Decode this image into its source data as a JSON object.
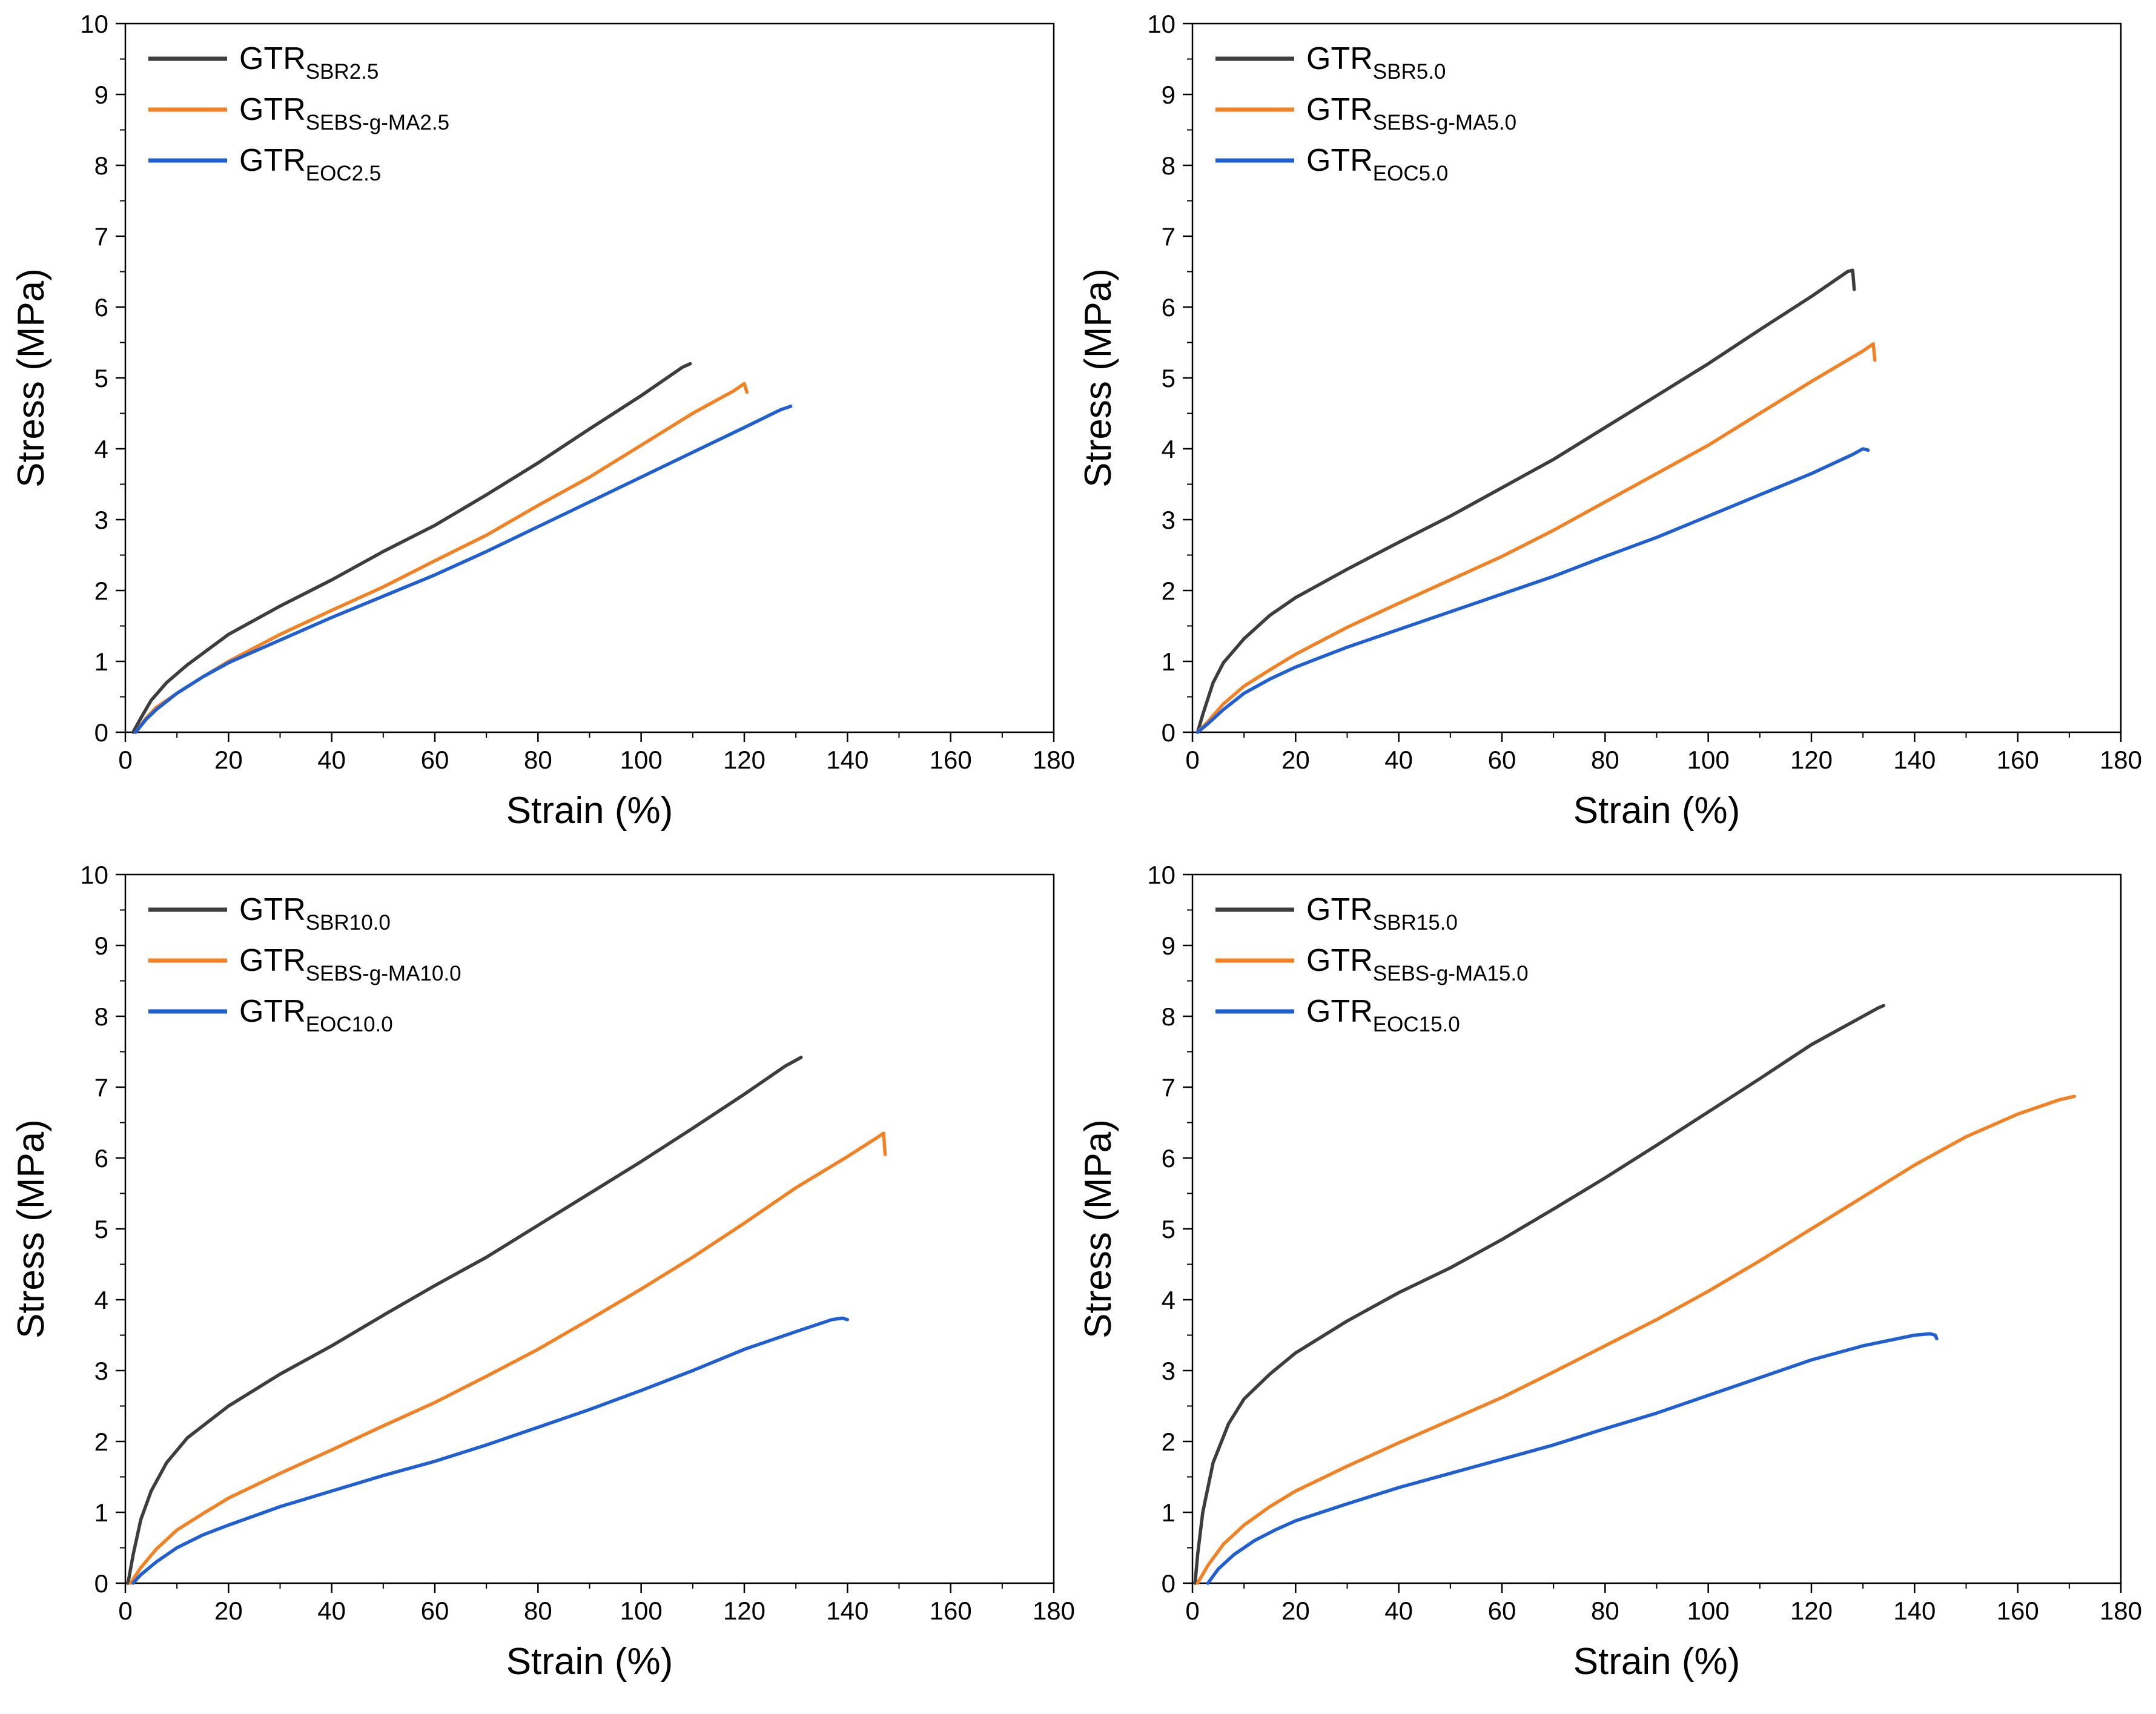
{
  "chart_data": [
    {
      "type": "line",
      "panel": "top-left",
      "xlabel": "Strain (%)",
      "ylabel": "Stress (MPa)",
      "xlim": [
        0,
        180
      ],
      "ylim": [
        0,
        10
      ],
      "xticks": [
        "0",
        "20",
        "40",
        "60",
        "80",
        "100",
        "120",
        "140",
        "160",
        "180"
      ],
      "yticks": [
        "0",
        "1",
        "2",
        "3",
        "4",
        "5",
        "6",
        "7",
        "8",
        "9",
        "10"
      ],
      "grid": false,
      "legend_position": "top-left",
      "series": [
        {
          "name": "GTR",
          "subscript": "SBR2.5",
          "color": "#3d3d3d",
          "points": [
            [
              1.5,
              0
            ],
            [
              3,
              0.2
            ],
            [
              5,
              0.45
            ],
            [
              8,
              0.7
            ],
            [
              12,
              0.95
            ],
            [
              20,
              1.38
            ],
            [
              30,
              1.78
            ],
            [
              40,
              2.15
            ],
            [
              50,
              2.55
            ],
            [
              60,
              2.92
            ],
            [
              70,
              3.35
            ],
            [
              80,
              3.8
            ],
            [
              90,
              4.28
            ],
            [
              100,
              4.75
            ],
            [
              108,
              5.15
            ],
            [
              109.5,
              5.2
            ]
          ]
        },
        {
          "name": "GTR",
          "subscript": "SEBS-g-MA2.5",
          "color": "#f28123",
          "points": [
            [
              2,
              0
            ],
            [
              4,
              0.2
            ],
            [
              6,
              0.35
            ],
            [
              10,
              0.55
            ],
            [
              15,
              0.78
            ],
            [
              20,
              1.0
            ],
            [
              30,
              1.38
            ],
            [
              40,
              1.72
            ],
            [
              50,
              2.05
            ],
            [
              60,
              2.42
            ],
            [
              70,
              2.78
            ],
            [
              80,
              3.2
            ],
            [
              90,
              3.6
            ],
            [
              100,
              4.05
            ],
            [
              110,
              4.5
            ],
            [
              118,
              4.82
            ],
            [
              120,
              4.92
            ],
            [
              120.5,
              4.8
            ]
          ]
        },
        {
          "name": "GTR",
          "subscript": "EOC2.5",
          "color": "#1f5fd1",
          "points": [
            [
              2,
              0
            ],
            [
              4,
              0.18
            ],
            [
              6,
              0.32
            ],
            [
              10,
              0.55
            ],
            [
              15,
              0.78
            ],
            [
              20,
              0.98
            ],
            [
              30,
              1.3
            ],
            [
              40,
              1.62
            ],
            [
              50,
              1.92
            ],
            [
              60,
              2.22
            ],
            [
              70,
              2.55
            ],
            [
              80,
              2.9
            ],
            [
              90,
              3.25
            ],
            [
              100,
              3.6
            ],
            [
              110,
              3.95
            ],
            [
              120,
              4.3
            ],
            [
              127,
              4.55
            ],
            [
              129,
              4.6
            ]
          ]
        }
      ]
    },
    {
      "type": "line",
      "panel": "top-right",
      "xlabel": "Strain (%)",
      "ylabel": "Stress (MPa)",
      "xlim": [
        0,
        180
      ],
      "ylim": [
        0,
        10
      ],
      "xticks": [
        "0",
        "20",
        "40",
        "60",
        "80",
        "100",
        "120",
        "140",
        "160",
        "180"
      ],
      "yticks": [
        "0",
        "1",
        "2",
        "3",
        "4",
        "5",
        "6",
        "7",
        "8",
        "9",
        "10"
      ],
      "grid": false,
      "legend_position": "top-left",
      "series": [
        {
          "name": "GTR",
          "subscript": "SBR5.0",
          "color": "#3d3d3d",
          "points": [
            [
              1,
              0
            ],
            [
              2,
              0.25
            ],
            [
              4,
              0.7
            ],
            [
              6,
              0.98
            ],
            [
              10,
              1.32
            ],
            [
              15,
              1.65
            ],
            [
              20,
              1.9
            ],
            [
              30,
              2.3
            ],
            [
              40,
              2.68
            ],
            [
              50,
              3.05
            ],
            [
              60,
              3.45
            ],
            [
              70,
              3.85
            ],
            [
              80,
              4.3
            ],
            [
              90,
              4.75
            ],
            [
              100,
              5.2
            ],
            [
              110,
              5.68
            ],
            [
              120,
              6.15
            ],
            [
              127,
              6.5
            ],
            [
              128,
              6.52
            ],
            [
              128.3,
              6.25
            ]
          ]
        },
        {
          "name": "GTR",
          "subscript": "SEBS-g-MA5.0",
          "color": "#f28123",
          "points": [
            [
              1,
              0
            ],
            [
              3,
              0.15
            ],
            [
              6,
              0.4
            ],
            [
              10,
              0.65
            ],
            [
              15,
              0.88
            ],
            [
              20,
              1.1
            ],
            [
              30,
              1.48
            ],
            [
              40,
              1.82
            ],
            [
              50,
              2.15
            ],
            [
              60,
              2.48
            ],
            [
              70,
              2.85
            ],
            [
              80,
              3.25
            ],
            [
              90,
              3.65
            ],
            [
              100,
              4.05
            ],
            [
              110,
              4.5
            ],
            [
              120,
              4.95
            ],
            [
              130,
              5.38
            ],
            [
              132,
              5.48
            ],
            [
              132.3,
              5.25
            ]
          ]
        },
        {
          "name": "GTR",
          "subscript": "EOC5.0",
          "color": "#1f5fd1",
          "points": [
            [
              1,
              0
            ],
            [
              3,
              0.12
            ],
            [
              6,
              0.32
            ],
            [
              10,
              0.55
            ],
            [
              15,
              0.75
            ],
            [
              20,
              0.92
            ],
            [
              30,
              1.2
            ],
            [
              40,
              1.45
            ],
            [
              50,
              1.7
            ],
            [
              60,
              1.95
            ],
            [
              70,
              2.2
            ],
            [
              80,
              2.48
            ],
            [
              90,
              2.75
            ],
            [
              100,
              3.05
            ],
            [
              110,
              3.35
            ],
            [
              120,
              3.65
            ],
            [
              128,
              3.92
            ],
            [
              130,
              4.0
            ],
            [
              131,
              3.98
            ]
          ]
        }
      ]
    },
    {
      "type": "line",
      "panel": "bottom-left",
      "xlabel": "Strain (%)",
      "ylabel": "Stress (MPa)",
      "xlim": [
        0,
        180
      ],
      "ylim": [
        0,
        10
      ],
      "xticks": [
        "0",
        "20",
        "40",
        "60",
        "80",
        "100",
        "120",
        "140",
        "160",
        "180"
      ],
      "yticks": [
        "0",
        "1",
        "2",
        "3",
        "4",
        "5",
        "6",
        "7",
        "8",
        "9",
        "10"
      ],
      "grid": false,
      "legend_position": "top-left",
      "series": [
        {
          "name": "GTR",
          "subscript": "SBR10.0",
          "color": "#3d3d3d",
          "points": [
            [
              0.5,
              0
            ],
            [
              1.5,
              0.4
            ],
            [
              3,
              0.9
            ],
            [
              5,
              1.3
            ],
            [
              8,
              1.7
            ],
            [
              12,
              2.05
            ],
            [
              20,
              2.5
            ],
            [
              30,
              2.95
            ],
            [
              40,
              3.35
            ],
            [
              50,
              3.78
            ],
            [
              60,
              4.2
            ],
            [
              70,
              4.6
            ],
            [
              80,
              5.05
            ],
            [
              90,
              5.5
            ],
            [
              100,
              5.95
            ],
            [
              110,
              6.42
            ],
            [
              120,
              6.9
            ],
            [
              128,
              7.3
            ],
            [
              131,
              7.42
            ]
          ]
        },
        {
          "name": "GTR",
          "subscript": "SEBS-g-MA10.0",
          "color": "#f28123",
          "points": [
            [
              1,
              0
            ],
            [
              3,
              0.22
            ],
            [
              6,
              0.48
            ],
            [
              10,
              0.75
            ],
            [
              15,
              0.98
            ],
            [
              20,
              1.2
            ],
            [
              30,
              1.55
            ],
            [
              40,
              1.88
            ],
            [
              50,
              2.22
            ],
            [
              60,
              2.55
            ],
            [
              70,
              2.92
            ],
            [
              80,
              3.3
            ],
            [
              90,
              3.72
            ],
            [
              100,
              4.15
            ],
            [
              110,
              4.6
            ],
            [
              120,
              5.08
            ],
            [
              130,
              5.58
            ],
            [
              140,
              6.02
            ],
            [
              146,
              6.3
            ],
            [
              147,
              6.35
            ],
            [
              147.3,
              6.05
            ]
          ]
        },
        {
          "name": "GTR",
          "subscript": "EOC10.0",
          "color": "#1f5fd1",
          "points": [
            [
              1.5,
              0
            ],
            [
              3,
              0.12
            ],
            [
              6,
              0.3
            ],
            [
              10,
              0.5
            ],
            [
              15,
              0.68
            ],
            [
              20,
              0.82
            ],
            [
              30,
              1.08
            ],
            [
              40,
              1.3
            ],
            [
              50,
              1.52
            ],
            [
              60,
              1.72
            ],
            [
              70,
              1.95
            ],
            [
              80,
              2.2
            ],
            [
              90,
              2.45
            ],
            [
              100,
              2.72
            ],
            [
              110,
              3.0
            ],
            [
              120,
              3.3
            ],
            [
              130,
              3.55
            ],
            [
              137,
              3.72
            ],
            [
              139,
              3.74
            ],
            [
              140,
              3.72
            ]
          ]
        }
      ]
    },
    {
      "type": "line",
      "panel": "bottom-right",
      "xlabel": "Strain (%)",
      "ylabel": "Stress (MPa)",
      "xlim": [
        0,
        180
      ],
      "ylim": [
        0,
        10
      ],
      "xticks": [
        "0",
        "20",
        "40",
        "60",
        "80",
        "100",
        "120",
        "140",
        "160",
        "180"
      ],
      "yticks": [
        "0",
        "1",
        "2",
        "3",
        "4",
        "5",
        "6",
        "7",
        "8",
        "9",
        "10"
      ],
      "grid": false,
      "legend_position": "top-left",
      "series": [
        {
          "name": "GTR",
          "subscript": "SBR15.0",
          "color": "#3d3d3d",
          "points": [
            [
              0.5,
              0
            ],
            [
              1,
              0.4
            ],
            [
              2,
              1.0
            ],
            [
              4,
              1.7
            ],
            [
              7,
              2.25
            ],
            [
              10,
              2.6
            ],
            [
              15,
              2.95
            ],
            [
              20,
              3.25
            ],
            [
              30,
              3.7
            ],
            [
              40,
              4.1
            ],
            [
              50,
              4.45
            ],
            [
              60,
              4.85
            ],
            [
              70,
              5.28
            ],
            [
              80,
              5.72
            ],
            [
              90,
              6.18
            ],
            [
              100,
              6.65
            ],
            [
              110,
              7.12
            ],
            [
              120,
              7.6
            ],
            [
              130,
              8.0
            ],
            [
              133,
              8.12
            ],
            [
              134,
              8.15
            ]
          ]
        },
        {
          "name": "GTR",
          "subscript": "SEBS-g-MA15.0",
          "color": "#f28123",
          "points": [
            [
              1,
              0
            ],
            [
              3,
              0.25
            ],
            [
              6,
              0.55
            ],
            [
              10,
              0.82
            ],
            [
              15,
              1.08
            ],
            [
              20,
              1.3
            ],
            [
              30,
              1.65
            ],
            [
              40,
              1.98
            ],
            [
              50,
              2.3
            ],
            [
              60,
              2.62
            ],
            [
              70,
              2.98
            ],
            [
              80,
              3.35
            ],
            [
              90,
              3.72
            ],
            [
              100,
              4.12
            ],
            [
              110,
              4.55
            ],
            [
              120,
              5.0
            ],
            [
              130,
              5.45
            ],
            [
              140,
              5.9
            ],
            [
              150,
              6.3
            ],
            [
              160,
              6.62
            ],
            [
              168,
              6.82
            ],
            [
              171,
              6.87
            ]
          ]
        },
        {
          "name": "GTR",
          "subscript": "EOC15.0",
          "color": "#1f5fd1",
          "points": [
            [
              3,
              0
            ],
            [
              5,
              0.2
            ],
            [
              8,
              0.4
            ],
            [
              12,
              0.6
            ],
            [
              16,
              0.75
            ],
            [
              20,
              0.88
            ],
            [
              30,
              1.12
            ],
            [
              40,
              1.35
            ],
            [
              50,
              1.55
            ],
            [
              60,
              1.75
            ],
            [
              70,
              1.95
            ],
            [
              80,
              2.18
            ],
            [
              90,
              2.4
            ],
            [
              100,
              2.65
            ],
            [
              110,
              2.9
            ],
            [
              120,
              3.15
            ],
            [
              130,
              3.35
            ],
            [
              140,
              3.5
            ],
            [
              143,
              3.52
            ],
            [
              144,
              3.5
            ],
            [
              144.3,
              3.45
            ]
          ]
        }
      ]
    }
  ]
}
